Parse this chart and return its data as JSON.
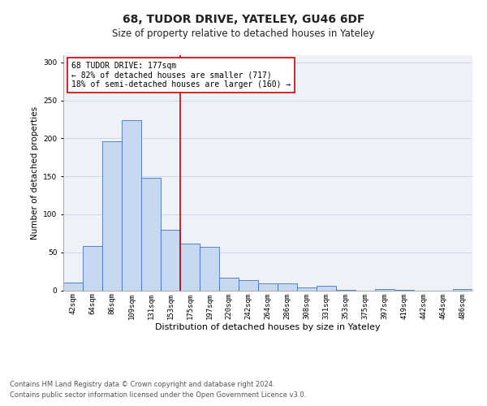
{
  "title1": "68, TUDOR DRIVE, YATELEY, GU46 6DF",
  "title2": "Size of property relative to detached houses in Yateley",
  "xlabel": "Distribution of detached houses by size in Yateley",
  "ylabel": "Number of detached properties",
  "categories": [
    "42sqm",
    "64sqm",
    "86sqm",
    "109sqm",
    "131sqm",
    "153sqm",
    "175sqm",
    "197sqm",
    "220sqm",
    "242sqm",
    "264sqm",
    "286sqm",
    "308sqm",
    "331sqm",
    "353sqm",
    "375sqm",
    "397sqm",
    "419sqm",
    "442sqm",
    "464sqm",
    "486sqm"
  ],
  "values": [
    10,
    58,
    196,
    224,
    148,
    80,
    62,
    57,
    17,
    13,
    9,
    9,
    4,
    6,
    1,
    0,
    2,
    1,
    0,
    0,
    2
  ],
  "bar_color": "#c6d9f0",
  "bar_edge_color": "#4472c4",
  "vline_color": "#cc0000",
  "vline_index": 6,
  "annotation_text": "68 TUDOR DRIVE: 177sqm\n← 82% of detached houses are smaller (717)\n18% of semi-detached houses are larger (160) →",
  "annotation_box_color": "#ffffff",
  "annotation_box_edge_color": "#cc0000",
  "ylim": [
    0,
    310
  ],
  "yticks": [
    0,
    50,
    100,
    150,
    200,
    250,
    300
  ],
  "grid_color": "#c8d4e8",
  "background_color": "#eef2f8",
  "footer_line1": "Contains HM Land Registry data © Crown copyright and database right 2024.",
  "footer_line2": "Contains public sector information licensed under the Open Government Licence v3.0.",
  "title1_fontsize": 10,
  "title2_fontsize": 8.5,
  "xlabel_fontsize": 8,
  "ylabel_fontsize": 7.5,
  "tick_fontsize": 6.5,
  "annotation_fontsize": 7,
  "footer_fontsize": 6
}
